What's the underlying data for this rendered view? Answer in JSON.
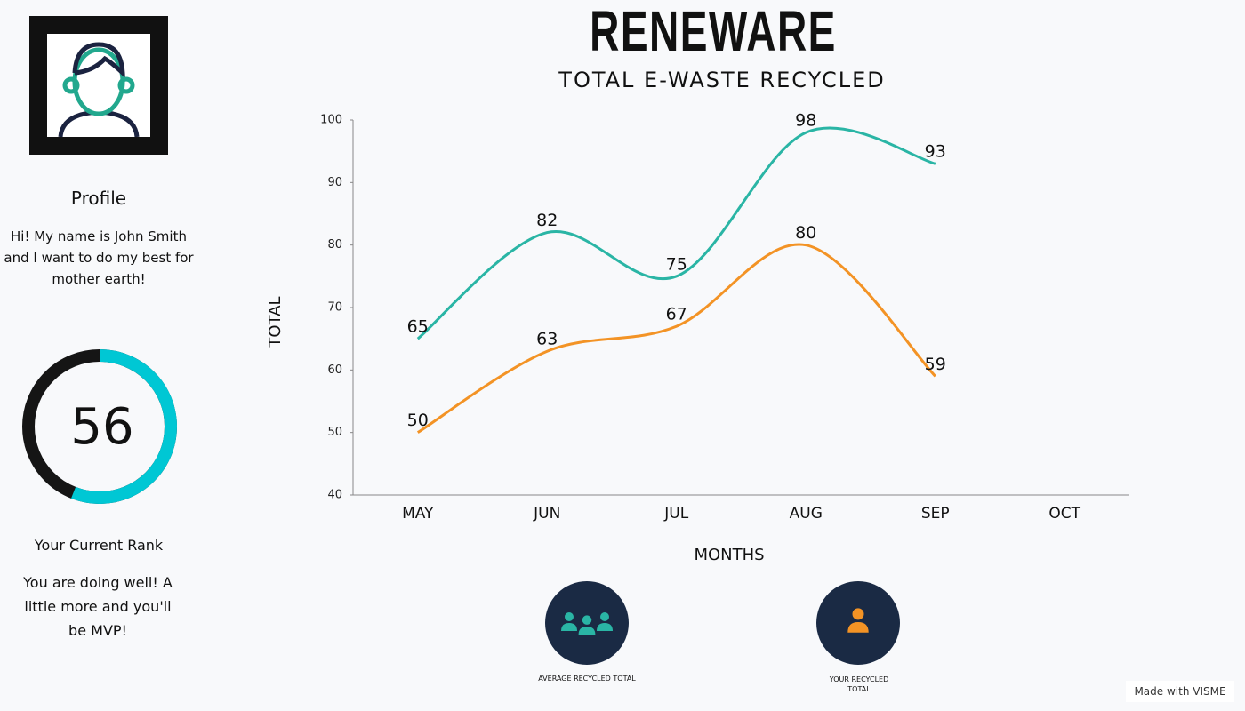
{
  "profile": {
    "heading": "Profile",
    "bio": "Hi! My name is John Smith and I want to do my best for mother earth!"
  },
  "rank": {
    "value": 56,
    "range": [
      0,
      100
    ],
    "caption": "Your Current Rank",
    "message": "You are doing well! A little more and you'll be MVP!"
  },
  "header": {
    "title": "RENEWARE"
  },
  "chart_data": {
    "type": "line",
    "subtitle": "TOTAL E-WASTE RECYCLED",
    "x_label": "MONTHS",
    "y_label": "TOTAL",
    "categories": [
      "MAY",
      "JUN",
      "JUL",
      "AUG",
      "SEP",
      "OCT"
    ],
    "series": [
      {
        "name": "AVERAGE RECYCLED TOTAL",
        "color": "#2ab5a5",
        "values": [
          65,
          82,
          75,
          98,
          93,
          null
        ]
      },
      {
        "name": "YOUR RECYCLED TOTAL",
        "color": "#f39325",
        "values": [
          50,
          63,
          67,
          80,
          59,
          null
        ]
      }
    ],
    "ylim": [
      40,
      100
    ],
    "yticks": [
      40,
      50,
      60,
      70,
      80,
      90,
      100
    ]
  },
  "footer": {
    "credit": "Made with VISME"
  }
}
